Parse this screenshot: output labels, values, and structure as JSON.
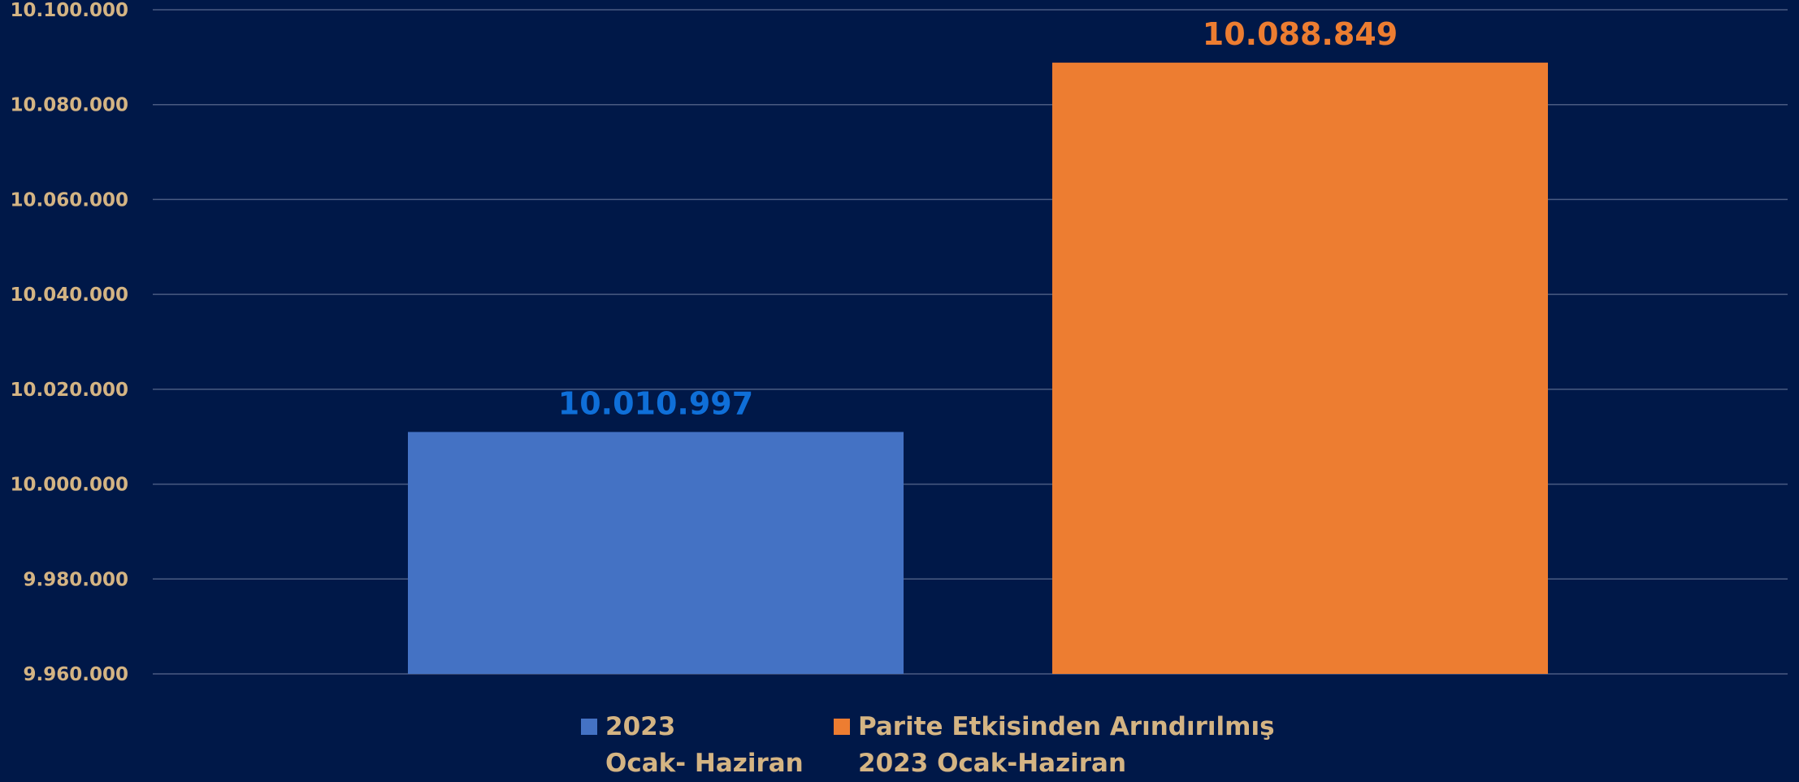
{
  "chart_data": {
    "type": "bar",
    "categories": [
      "2023 Ocak- Haziran",
      "Parite Etkisinden Arındırılmış 2023 Ocak-Haziran"
    ],
    "series": [
      {
        "name_lines": [
          "2023",
          "Ocak- Haziran"
        ],
        "value": 10010997,
        "value_label": "10.010.997",
        "color": "#4472c4",
        "label_color": "#0f6fd8"
      },
      {
        "name_lines": [
          "Parite Etkisinden Arındırılmış",
          "2023 Ocak-Haziran"
        ],
        "value": 10088849,
        "value_label": "10.088.849",
        "color": "#ed7d31",
        "label_color": "#ed7d31"
      }
    ],
    "ylim": [
      9960000,
      10100000
    ],
    "y_ticks": [
      {
        "value": 9960000,
        "label": "9.960.000"
      },
      {
        "value": 9980000,
        "label": "9.980.000"
      },
      {
        "value": 10000000,
        "label": "10.000.000"
      },
      {
        "value": 10020000,
        "label": "10.020.000"
      },
      {
        "value": 10040000,
        "label": "10.040.000"
      },
      {
        "value": 10060000,
        "label": "10.060.000"
      },
      {
        "value": 10080000,
        "label": "10.080.000"
      },
      {
        "value": 10100000,
        "label": "10.100.000"
      }
    ],
    "grid": true,
    "legend": "bottom-center",
    "background": "#001848",
    "text_color": "#d4b483"
  }
}
